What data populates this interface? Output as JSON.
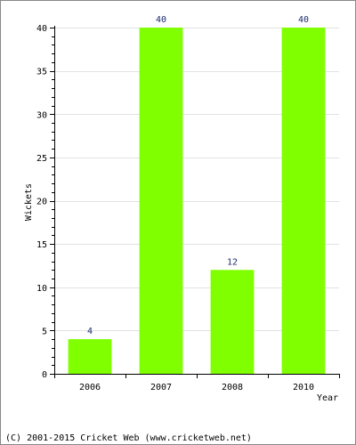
{
  "chart_data": {
    "type": "bar",
    "categories": [
      "2006",
      "2007",
      "2008",
      "2010"
    ],
    "values": [
      4,
      40,
      12,
      40
    ],
    "data_labels": [
      "4",
      "40",
      "12",
      "40"
    ],
    "xlabel": "Year",
    "ylabel": "Wickets",
    "ylim": [
      0,
      40
    ],
    "yticks": [
      0,
      5,
      10,
      15,
      20,
      25,
      30,
      35,
      40
    ],
    "ytick_labels": [
      "0",
      "5",
      "10",
      "15",
      "20",
      "25",
      "30",
      "35",
      "40"
    ],
    "grid": true,
    "bar_color": "#80ff00",
    "grid_color": "#e2e2e2",
    "data_label_color": "#1a2a6c"
  },
  "footer": {
    "text": "(C) 2001-2015 Cricket Web (www.cricketweb.net)"
  }
}
